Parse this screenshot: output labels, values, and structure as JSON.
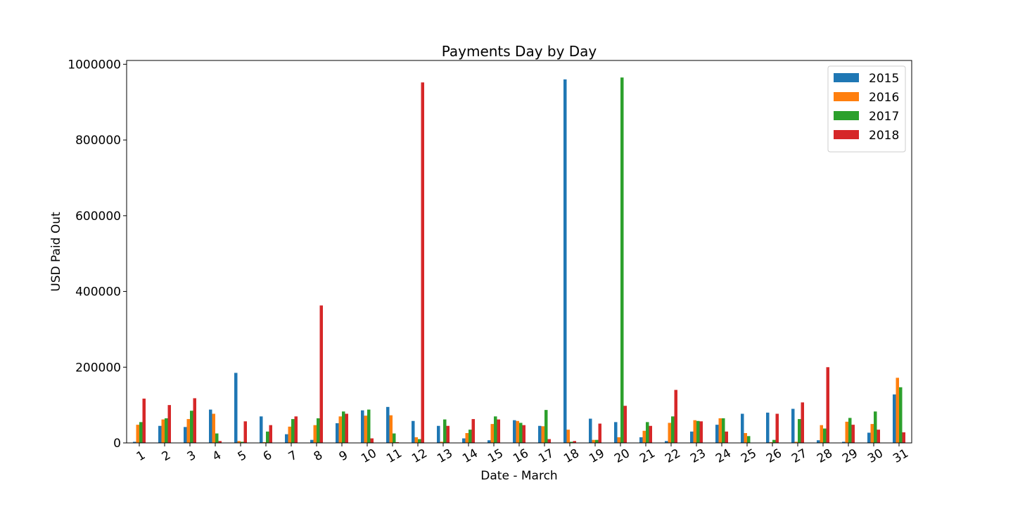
{
  "chart_data": {
    "type": "bar",
    "title": "Payments Day by Day",
    "xlabel": "Date - March",
    "ylabel": "USD Paid Out",
    "ylim": [
      0,
      1010000
    ],
    "yticks": [
      0,
      200000,
      400000,
      600000,
      800000,
      1000000
    ],
    "ytick_labels": [
      "0",
      "200000",
      "400000",
      "600000",
      "800000",
      "1000000"
    ],
    "categories": [
      "1",
      "2",
      "3",
      "4",
      "5",
      "6",
      "7",
      "8",
      "9",
      "10",
      "11",
      "12",
      "13",
      "14",
      "15",
      "16",
      "17",
      "18",
      "19",
      "20",
      "21",
      "22",
      "23",
      "24",
      "25",
      "26",
      "27",
      "28",
      "29",
      "30",
      "31"
    ],
    "grid": false,
    "legend_position": "top-right",
    "series": [
      {
        "name": "2015",
        "color": "#1f77b4",
        "values": [
          3000,
          45000,
          42000,
          88000,
          185000,
          70000,
          23000,
          8000,
          52000,
          86000,
          95000,
          58000,
          45000,
          12000,
          7000,
          60000,
          45000,
          960000,
          64000,
          55000,
          15000,
          5000,
          30000,
          48000,
          77000,
          80000,
          90000,
          7000,
          3000,
          27000,
          128000
        ]
      },
      {
        "name": "2016",
        "color": "#ff7f0e",
        "values": [
          48000,
          62000,
          63000,
          77000,
          5000,
          2000,
          43000,
          47000,
          70000,
          72000,
          73000,
          15000,
          3000,
          26000,
          50000,
          58000,
          44000,
          35000,
          8000,
          15000,
          32000,
          53000,
          60000,
          65000,
          26000,
          2000,
          3000,
          47000,
          56000,
          50000,
          172000
        ]
      },
      {
        "name": "2017",
        "color": "#2ca02c",
        "values": [
          55000,
          65000,
          85000,
          25000,
          3000,
          30000,
          63000,
          65000,
          83000,
          88000,
          25000,
          10000,
          62000,
          35000,
          70000,
          53000,
          87000,
          3000,
          8000,
          965000,
          55000,
          70000,
          58000,
          65000,
          18000,
          8000,
          63000,
          38000,
          66000,
          83000,
          147000
        ]
      },
      {
        "name": "2018",
        "color": "#d62728",
        "values": [
          117000,
          100000,
          118000,
          5000,
          57000,
          47000,
          70000,
          363000,
          77000,
          12000,
          2000,
          952000,
          45000,
          63000,
          62000,
          47000,
          10000,
          5000,
          51000,
          98000,
          45000,
          140000,
          57000,
          30000,
          0,
          77000,
          107000,
          200000,
          48000,
          35000,
          28000
        ]
      }
    ]
  }
}
